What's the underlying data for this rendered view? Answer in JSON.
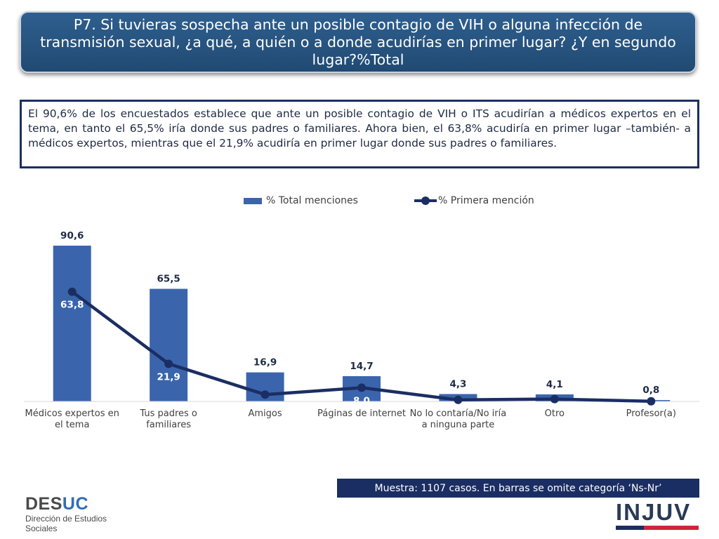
{
  "header": {
    "title": "P7. Si tuvieras sospecha ante un posible contagio de VIH o alguna infección de transmisión sexual, ¿a qué, a quién o a donde acudirías en primer lugar? ¿Y en segundo lugar?%Total"
  },
  "summary": {
    "text": "El 90,6% de los encuestados establece que ante un posible contagio de VIH o ITS acudirían a médicos expertos en el tema, en tanto el 65,5% iría donde sus padres o familiares. Ahora bien, el 63,8% acudiría en primer lugar –también- a médicos expertos, mientras que el 21,9% acudiría en primer lugar donde sus padres o familiares."
  },
  "chart_data": {
    "type": "bar",
    "categories": [
      [
        "Médicos expertos en",
        "el tema"
      ],
      [
        "Tus padres o",
        "familiares"
      ],
      [
        "Amigos"
      ],
      [
        "Páginas de internet"
      ],
      [
        "No lo contaría/No iría",
        "a ninguna parte"
      ],
      [
        "Otro"
      ],
      [
        "Profesor(a)"
      ]
    ],
    "series": [
      {
        "name": "% Total menciones",
        "type": "bar",
        "values": [
          90.6,
          65.5,
          16.9,
          14.7,
          4.3,
          4.1,
          0.8
        ],
        "labels": [
          "90,6",
          "65,5",
          "16,9",
          "14,7",
          "4,3",
          "4,1",
          "0,8"
        ],
        "color": "#3a65ad"
      },
      {
        "name": "% Primera mención",
        "type": "line",
        "values": [
          63.8,
          21.9,
          4.0,
          8.0,
          0.9,
          1.4,
          0.1
        ],
        "labels": [
          "63,8",
          "21,9",
          "4,0",
          "8,0",
          "0,9",
          "1,4",
          "0,1"
        ],
        "color": "#1b2e63"
      }
    ],
    "ylim": [
      0,
      100
    ],
    "grid": false,
    "legend": "top"
  },
  "footer": {
    "sample_note": "Muestra: 1107 casos. En barras se omite categoría ‘Ns-Nr’"
  },
  "logos": {
    "desuc_a": "DES",
    "desuc_b": "UC",
    "desuc_sub1": "Dirección de Estudios",
    "desuc_sub2": "Sociales",
    "injuv": "INJUV"
  }
}
